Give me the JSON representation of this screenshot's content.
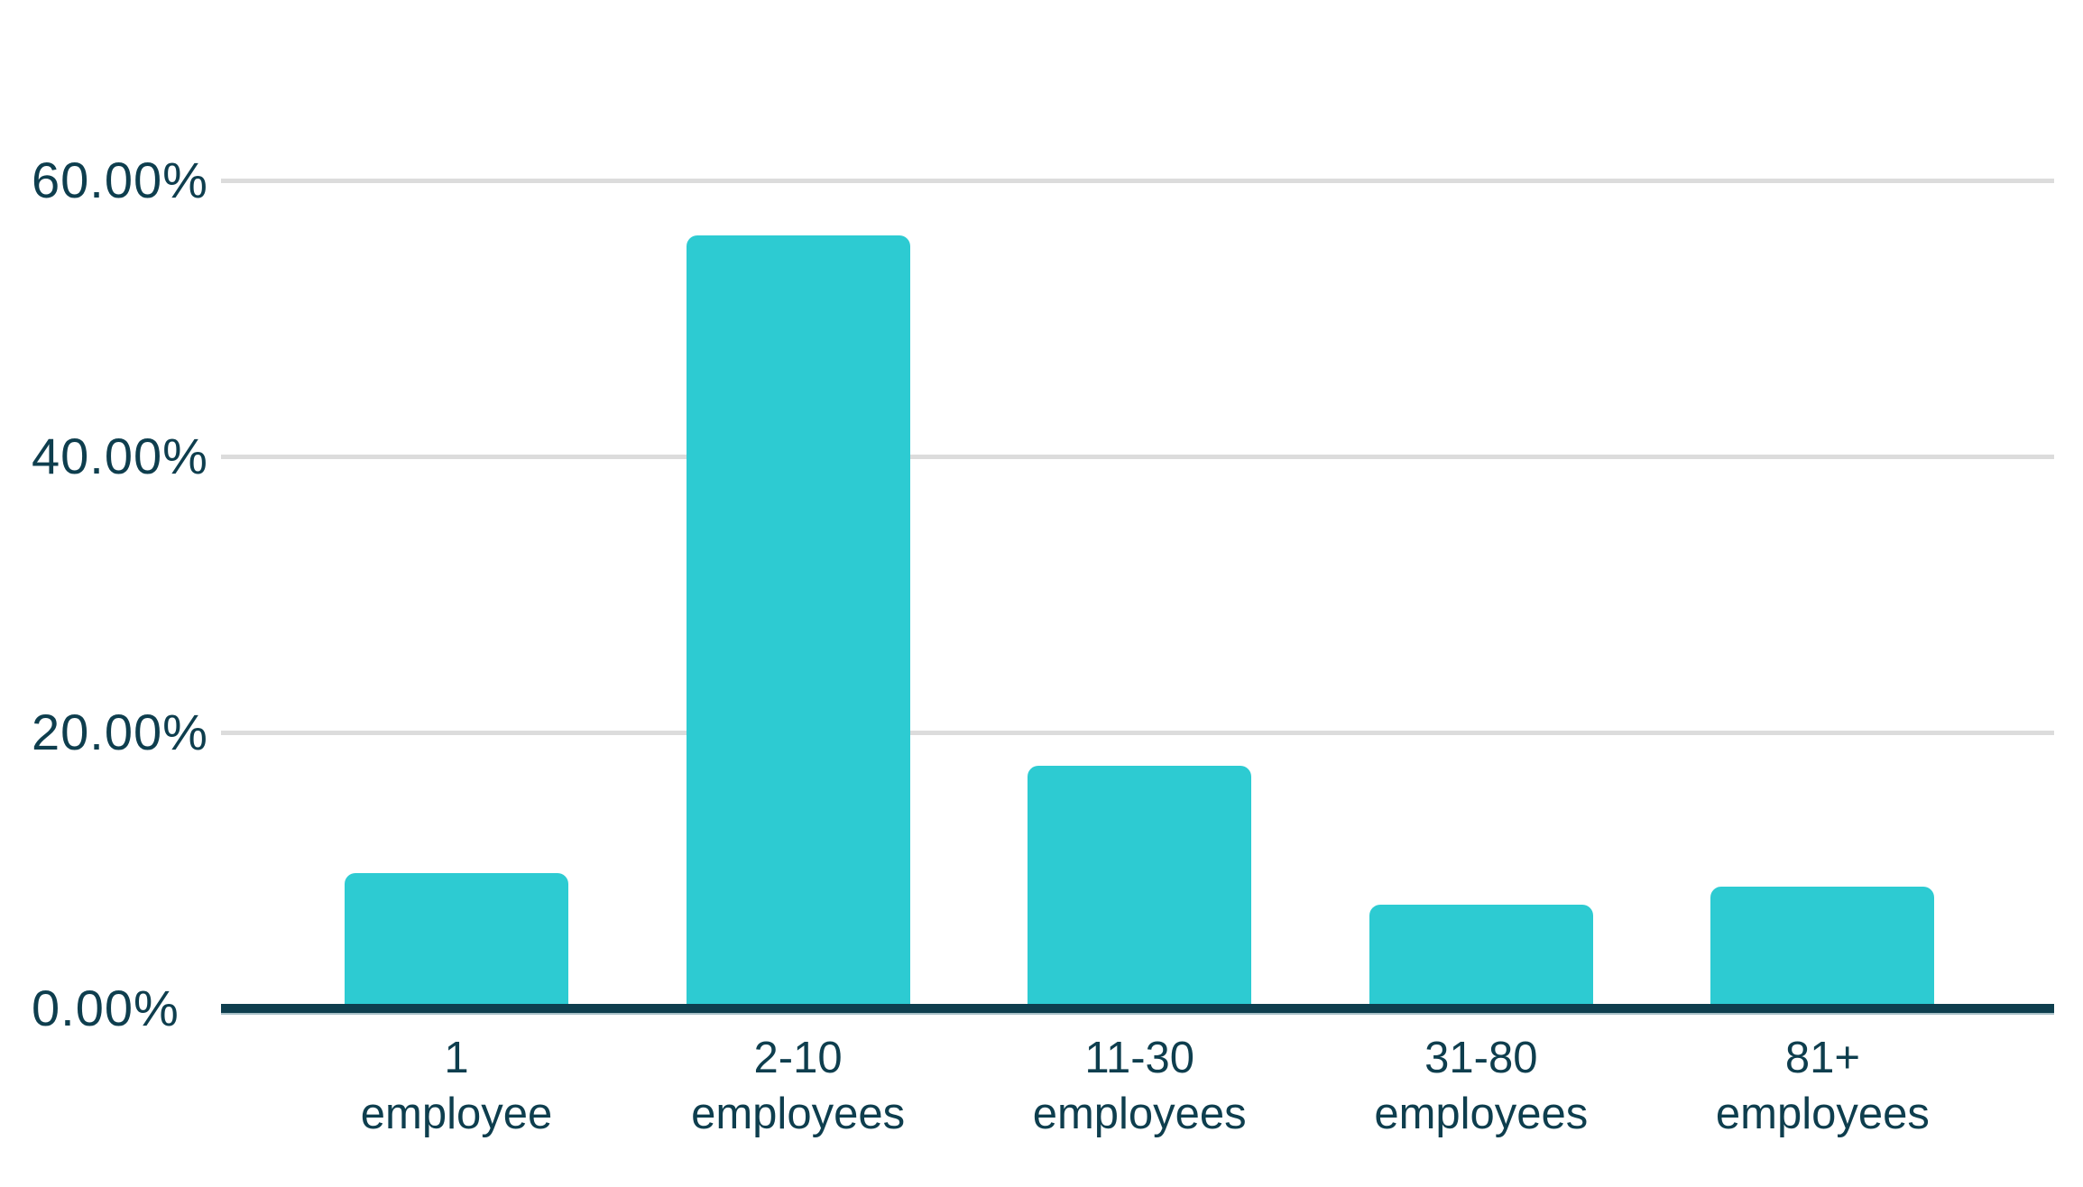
{
  "chart_data": {
    "type": "bar",
    "title": "",
    "categories": [
      "1 employee",
      "2-10 employees",
      "11-30 employees",
      "31-80 employees",
      "81+ employees"
    ],
    "category_lines": [
      [
        "1",
        "employee"
      ],
      [
        "2-10",
        "employees"
      ],
      [
        "11-30",
        "employees"
      ],
      [
        "31-80",
        "employees"
      ],
      [
        "81+",
        "employees"
      ]
    ],
    "values": [
      9.8,
      56.0,
      17.6,
      7.5,
      8.8
    ],
    "yticks": [
      {
        "value": 0,
        "label": "0.00%"
      },
      {
        "value": 20,
        "label": "20.00%"
      },
      {
        "value": 40,
        "label": "40.00%"
      },
      {
        "value": 60,
        "label": "60.00%"
      }
    ],
    "ylim": [
      0,
      73
    ],
    "xlabel": "",
    "ylabel": "",
    "grid": true,
    "legend": false,
    "colors": {
      "bar": "#2dcbd2",
      "axis_line": "#0e3e4e",
      "gridline": "#dcdcdc",
      "tick_text": "#0e3e4e",
      "background": "#ffffff"
    }
  }
}
